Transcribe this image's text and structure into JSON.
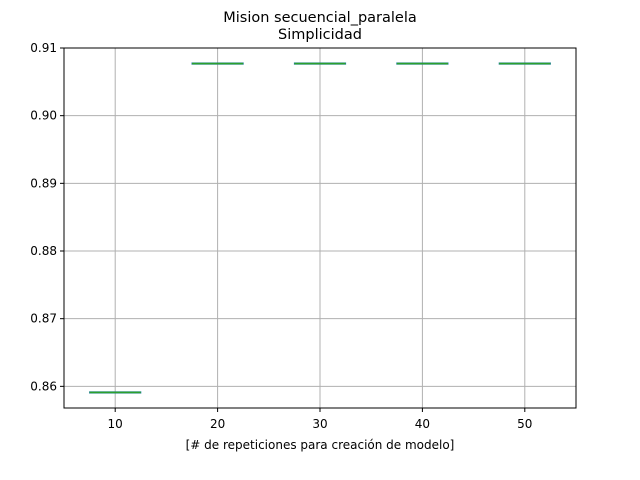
{
  "chart_data": {
    "type": "box",
    "title_line1": "Mision secuencial_paralela",
    "title_line2": "Simplicidad",
    "xlabel": "[# de repeticiones para creación de modelo]",
    "ylabel": "",
    "categories": [
      "10",
      "20",
      "30",
      "40",
      "50"
    ],
    "x": [
      10,
      20,
      30,
      40,
      50
    ],
    "values": [
      0.8591,
      0.9077,
      0.9077,
      0.9077,
      0.9077
    ],
    "xlim": [
      5,
      55
    ],
    "ylim": [
      0.8568,
      0.91
    ],
    "yticks": [
      0.86,
      0.87,
      0.88,
      0.89,
      0.9,
      0.91
    ],
    "ytick_labels": [
      "0.86",
      "0.87",
      "0.88",
      "0.89",
      "0.90",
      "0.91"
    ],
    "grid": true,
    "colors": {
      "box": "#1f77b4",
      "median": "#2ca02c",
      "grid": "#b0b0b0"
    }
  }
}
